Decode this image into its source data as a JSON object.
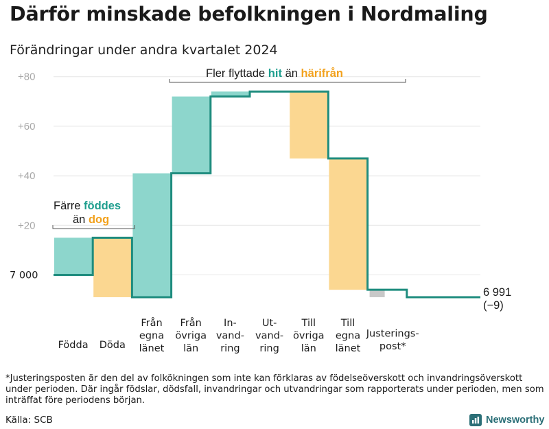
{
  "header": {
    "title": "Därför minskade befolkningen i Nordmaling",
    "subtitle": "Förändringar under andra kvartalet 2024"
  },
  "chart_data": {
    "type": "waterfall",
    "baseline": 7000,
    "baseline_label": "7 000",
    "yticks": [
      {
        "value": 20,
        "label": "+20"
      },
      {
        "value": 40,
        "label": "+40"
      },
      {
        "value": 60,
        "label": "+60"
      },
      {
        "value": 80,
        "label": "+80"
      }
    ],
    "ylim": [
      -12,
      83
    ],
    "steps": [
      {
        "key": "fodda",
        "label": [
          "Födda"
        ],
        "from": 0,
        "to": 15,
        "kind": "in"
      },
      {
        "key": "doda",
        "label": [
          "Döda"
        ],
        "from": 15,
        "to": -9,
        "kind": "out"
      },
      {
        "key": "fran_egna",
        "label": [
          "Från",
          "egna",
          "länet"
        ],
        "from": -9,
        "to": 41,
        "kind": "in"
      },
      {
        "key": "fran_ovriga",
        "label": [
          "Från",
          "övriga",
          "län"
        ],
        "from": 41,
        "to": 72,
        "kind": "in"
      },
      {
        "key": "invandring",
        "label": [
          "In-",
          "vand-",
          "ring"
        ],
        "from": 72,
        "to": 74,
        "kind": "in"
      },
      {
        "key": "utvandring",
        "label": [
          "Ut-",
          "vand-",
          "ring"
        ],
        "from": 74,
        "to": 74,
        "kind": "out"
      },
      {
        "key": "till_ovriga",
        "label": [
          "Till",
          "övriga",
          "län"
        ],
        "from": 74,
        "to": 47,
        "kind": "out"
      },
      {
        "key": "till_egna",
        "label": [
          "Till",
          "egna",
          "länet"
        ],
        "from": 47,
        "to": -6,
        "kind": "out"
      },
      {
        "key": "justering",
        "label": [
          "Justerings-",
          "post*"
        ],
        "from": -6,
        "to": -9,
        "kind": "adjust"
      }
    ],
    "end_value": "6 991",
    "end_change": "(−9)",
    "annotations": {
      "births": {
        "line1": "Färre",
        "line1_bold": "föddes",
        "line2": "än",
        "line2_bold": "dog"
      },
      "moves": {
        "pre": "Fler flyttade",
        "bold1": "hit",
        "mid": "än",
        "bold2": "härifrån"
      }
    },
    "colors": {
      "in": "#8dd6cc",
      "out": "#fbd791",
      "adjust": "#c8c8c8",
      "line": "#1e8c7e",
      "grid": "#e5e5e5"
    }
  },
  "footer": {
    "footnote": "*Justeringsposten är den del av folkökningen som inte kan förklaras av födelseöverskott och invandringsöverskott under perioden. Där ingår födslar, dödsfall, invandringar och utvandringar som rapporterats under perioden, men som inträffat före periodens början.",
    "source": "Källa: SCB",
    "brand": "Newsworthy"
  }
}
